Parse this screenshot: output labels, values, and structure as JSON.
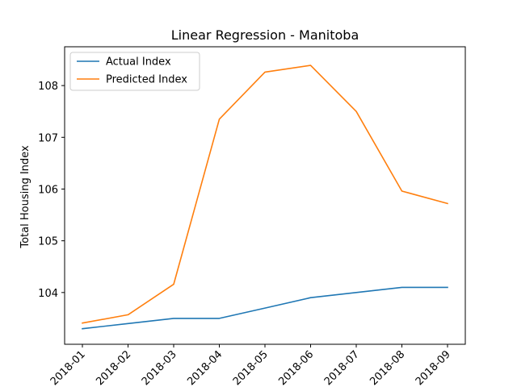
{
  "chart_data": {
    "type": "line",
    "title": "Linear Regression - Manitoba",
    "xlabel": "",
    "ylabel": "Total Housing Index",
    "categories": [
      "2018-01",
      "2018-02",
      "2018-03",
      "2018-04",
      "2018-05",
      "2018-06",
      "2018-07",
      "2018-08",
      "2018-09"
    ],
    "series": [
      {
        "name": "Actual Index",
        "color": "#1f77b4",
        "values": [
          103.3,
          103.4,
          103.5,
          103.5,
          103.7,
          103.9,
          104.0,
          104.1,
          104.1
        ]
      },
      {
        "name": "Predicted Index",
        "color": "#ff7f0e",
        "values": [
          103.41,
          103.57,
          104.16,
          107.35,
          108.26,
          108.39,
          107.5,
          105.96,
          105.72
        ]
      }
    ],
    "yticks": [
      "104",
      "105",
      "106",
      "107",
      "108"
    ],
    "ylim": [
      103.0,
      108.75
    ],
    "grid": false,
    "legend_position": "upper left"
  }
}
